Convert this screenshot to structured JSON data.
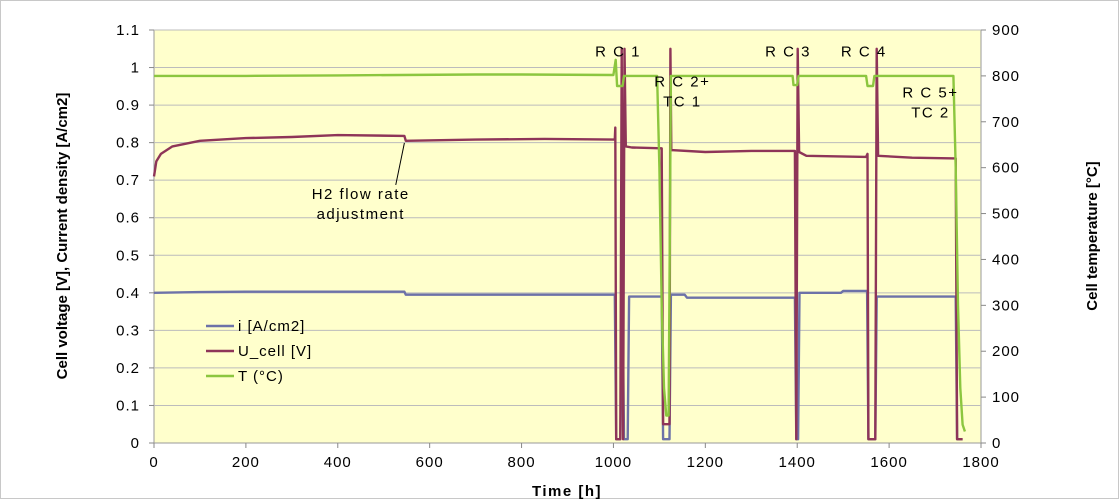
{
  "chart_data": {
    "type": "line",
    "xlabel": "Time [h]",
    "ylabel": "Cell voltage [V], Current density [A/cm2]",
    "y2label": "Cell temperature [°C]",
    "xlim": [
      0,
      1800
    ],
    "ylim": [
      0,
      1.1
    ],
    "y2lim": [
      0,
      900
    ],
    "x_ticks": [
      "0",
      "200",
      "400",
      "600",
      "800",
      "1000",
      "1200",
      "1400",
      "1600",
      "1800"
    ],
    "y_ticks": [
      "0",
      "0.1",
      "0.2",
      "0.3",
      "0.4",
      "0.5",
      "0.6",
      "0.7",
      "0.8",
      "0.9",
      "1",
      "1.1"
    ],
    "y2_ticks": [
      "0",
      "100",
      "200",
      "300",
      "400",
      "500",
      "600",
      "700",
      "800",
      "900"
    ],
    "grid": "horizontal",
    "legend_position": "lower-left",
    "series": [
      {
        "name": "i [A/cm2]",
        "axis": "left",
        "color": "#6d72a8",
        "points": [
          [
            0,
            0.4
          ],
          [
            100,
            0.402
          ],
          [
            200,
            0.403
          ],
          [
            400,
            0.403
          ],
          [
            545,
            0.403
          ],
          [
            548,
            0.395
          ],
          [
            700,
            0.395
          ],
          [
            900,
            0.395
          ],
          [
            1003,
            0.395
          ],
          [
            1006,
            0.01
          ],
          [
            1015,
            0.01
          ],
          [
            1020,
            0.39
          ],
          [
            1023,
            0.01
          ],
          [
            1031,
            0.01
          ],
          [
            1034,
            0.39
          ],
          [
            1105,
            0.39
          ],
          [
            1108,
            0.01
          ],
          [
            1122,
            0.01
          ],
          [
            1125,
            0.395
          ],
          [
            1155,
            0.395
          ],
          [
            1160,
            0.387
          ],
          [
            1395,
            0.387
          ],
          [
            1398,
            0.01
          ],
          [
            1402,
            0.01
          ],
          [
            1405,
            0.4
          ],
          [
            1495,
            0.4
          ],
          [
            1500,
            0.405
          ],
          [
            1552,
            0.405
          ],
          [
            1555,
            0.01
          ],
          [
            1570,
            0.01
          ],
          [
            1573,
            0.39
          ],
          [
            1745,
            0.39
          ],
          [
            1748,
            0.01
          ],
          [
            1760,
            0.01
          ]
        ]
      },
      {
        "name": "U_cell [V]",
        "axis": "left",
        "color": "#8e3558",
        "points": [
          [
            0,
            0.71
          ],
          [
            5,
            0.75
          ],
          [
            15,
            0.77
          ],
          [
            40,
            0.79
          ],
          [
            100,
            0.805
          ],
          [
            200,
            0.812
          ],
          [
            300,
            0.815
          ],
          [
            400,
            0.82
          ],
          [
            545,
            0.818
          ],
          [
            548,
            0.805
          ],
          [
            700,
            0.808
          ],
          [
            850,
            0.81
          ],
          [
            1003,
            0.808
          ],
          [
            1004,
            0.84
          ],
          [
            1006,
            0.01
          ],
          [
            1015,
            0.01
          ],
          [
            1018,
            1.05
          ],
          [
            1021,
            0.01
          ],
          [
            1024,
            1.05
          ],
          [
            1027,
            0.79
          ],
          [
            1040,
            0.787
          ],
          [
            1105,
            0.785
          ],
          [
            1108,
            0.05
          ],
          [
            1122,
            0.05
          ],
          [
            1124,
            1.05
          ],
          [
            1126,
            0.78
          ],
          [
            1200,
            0.775
          ],
          [
            1300,
            0.778
          ],
          [
            1395,
            0.778
          ],
          [
            1398,
            0.01
          ],
          [
            1401,
            1.05
          ],
          [
            1404,
            0.775
          ],
          [
            1420,
            0.765
          ],
          [
            1550,
            0.762
          ],
          [
            1553,
            0.77
          ],
          [
            1555,
            0.01
          ],
          [
            1570,
            0.01
          ],
          [
            1573,
            1.05
          ],
          [
            1576,
            0.765
          ],
          [
            1650,
            0.76
          ],
          [
            1745,
            0.758
          ],
          [
            1748,
            0.01
          ],
          [
            1760,
            0.01
          ]
        ]
      },
      {
        "name": "T (°C)",
        "axis": "right",
        "color": "#8cc63f",
        "points": [
          [
            0,
            800
          ],
          [
            200,
            800
          ],
          [
            400,
            801
          ],
          [
            700,
            803
          ],
          [
            800,
            803
          ],
          [
            1000,
            802
          ],
          [
            1005,
            835
          ],
          [
            1008,
            778
          ],
          [
            1020,
            778
          ],
          [
            1023,
            800
          ],
          [
            1095,
            800
          ],
          [
            1100,
            600
          ],
          [
            1105,
            300
          ],
          [
            1110,
            120
          ],
          [
            1115,
            60
          ],
          [
            1120,
            60
          ],
          [
            1125,
            800
          ],
          [
            1390,
            800
          ],
          [
            1392,
            780
          ],
          [
            1400,
            780
          ],
          [
            1403,
            800
          ],
          [
            1550,
            800
          ],
          [
            1553,
            778
          ],
          [
            1565,
            778
          ],
          [
            1568,
            800
          ],
          [
            1740,
            800
          ],
          [
            1745,
            600
          ],
          [
            1750,
            300
          ],
          [
            1755,
            120
          ],
          [
            1760,
            40
          ],
          [
            1765,
            25
          ]
        ]
      }
    ],
    "annotations": [
      {
        "text": "RC1",
        "x": 1010,
        "y": 1.03,
        "lines": [
          "R C 1"
        ]
      },
      {
        "text": "RC2+ TC1",
        "x": 1150,
        "y": 0.95,
        "lines": [
          "R C 2+",
          "TC 1"
        ]
      },
      {
        "text": "RC3",
        "x": 1380,
        "y": 1.03,
        "lines": [
          "R C 3"
        ]
      },
      {
        "text": "RC4",
        "x": 1545,
        "y": 1.03,
        "lines": [
          "R C 4"
        ]
      },
      {
        "text": "RC5+ TC2",
        "x": 1690,
        "y": 0.92,
        "lines": [
          "R C 5+",
          "TC 2"
        ]
      },
      {
        "text": "H2 flow rate adjustment",
        "x": 450,
        "y": 0.65,
        "lines": [
          "H2 flow rate",
          "adjustment"
        ],
        "arrow_to": [
          545,
          0.81
        ]
      }
    ]
  }
}
